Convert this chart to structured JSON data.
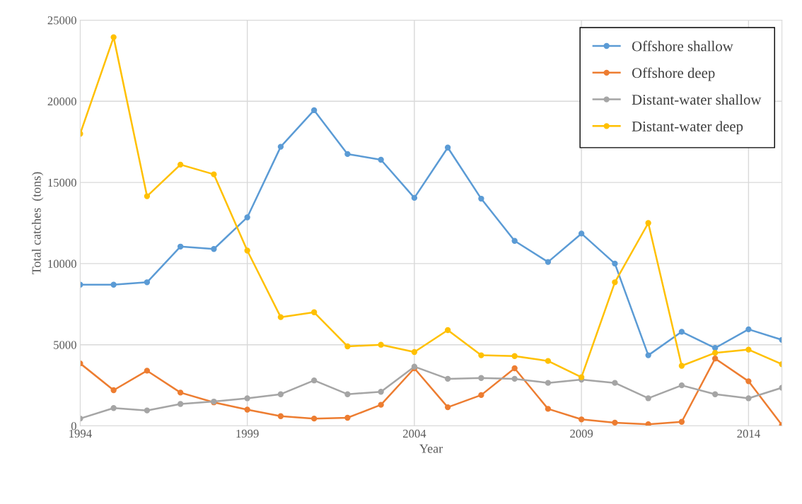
{
  "chart_data": {
    "type": "line",
    "xlabel": "Year",
    "ylabel": "Total catches  (tons)",
    "x": [
      1994,
      1995,
      1996,
      1997,
      1998,
      1999,
      2000,
      2001,
      2002,
      2003,
      2004,
      2005,
      2006,
      2007,
      2008,
      2009,
      2010,
      2011,
      2012,
      2013,
      2014,
      2015
    ],
    "series": [
      {
        "name": "Offshore shallow",
        "color": "#5b9bd5",
        "values": [
          8700,
          8700,
          8850,
          11050,
          10900,
          12850,
          17200,
          19450,
          16750,
          16400,
          14050,
          17150,
          14000,
          11400,
          10100,
          11850,
          10000,
          4350,
          5800,
          4800,
          5950,
          5300
        ]
      },
      {
        "name": "Offshore deep",
        "color": "#ed7d31",
        "values": [
          3850,
          2200,
          3400,
          2050,
          1450,
          1000,
          600,
          450,
          500,
          1300,
          3550,
          1150,
          1900,
          3550,
          1050,
          400,
          200,
          100,
          250,
          4150,
          2750,
          50
        ]
      },
      {
        "name": "Distant-water shallow",
        "color": "#a5a5a5",
        "values": [
          450,
          1100,
          950,
          1350,
          1500,
          1700,
          1950,
          2800,
          1950,
          2100,
          3650,
          2900,
          2950,
          2900,
          2650,
          2850,
          2650,
          1700,
          2500,
          1950,
          1700,
          2350
        ]
      },
      {
        "name": "Distant-water deep",
        "color": "#ffc000",
        "values": [
          18000,
          23950,
          14150,
          16100,
          15500,
          10800,
          6700,
          7000,
          4900,
          5000,
          4550,
          5900,
          4350,
          4300,
          4000,
          3000,
          8850,
          12500,
          3700,
          4500,
          4700,
          3800
        ]
      }
    ],
    "xlim": [
      1994,
      2015
    ],
    "xticks": [
      1994,
      1999,
      2004,
      2009,
      2014
    ],
    "ylim": [
      0,
      25000
    ],
    "yticks": [
      0,
      5000,
      10000,
      15000,
      20000,
      25000
    ],
    "grid": true,
    "legend": "top right",
    "marker": "circle",
    "line_style": "solid"
  }
}
